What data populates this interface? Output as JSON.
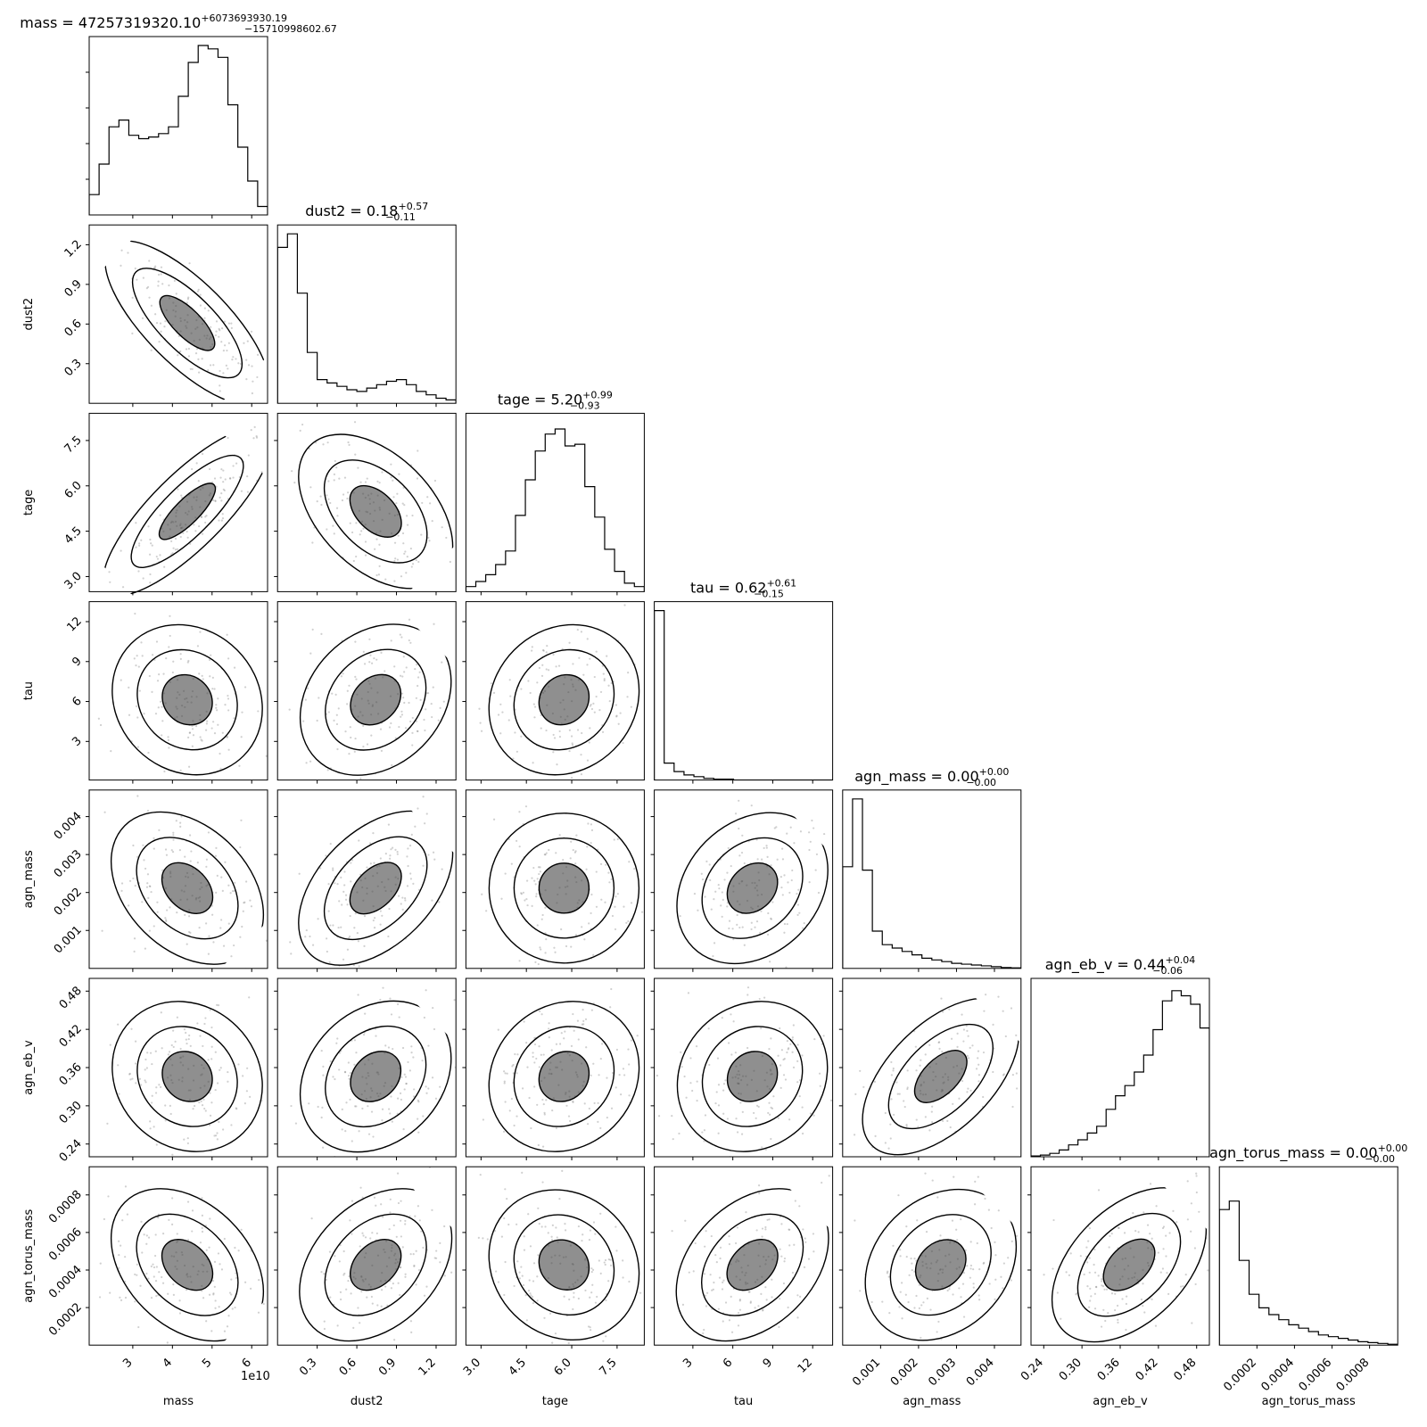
{
  "chart_data": {
    "type": "corner",
    "parameters": [
      {
        "name": "mass",
        "xlabel": "mass",
        "ylabel": "",
        "range": [
          19000000000.0,
          64000000000.0
        ],
        "ticks": [
          30000000000.0,
          40000000000.0,
          50000000000.0,
          60000000000.0
        ],
        "tick_labels": [
          "3",
          "4",
          "5",
          "6"
        ],
        "offset_label": "1e10",
        "title": {
          "main": "mass = 47257319320.10",
          "plus": "+6073693930.19",
          "minus": "−15710998602.67"
        }
      },
      {
        "name": "dust2",
        "xlabel": "dust2",
        "ylabel": "dust2",
        "range": [
          0.0,
          1.35
        ],
        "ticks": [
          0.3,
          0.6,
          0.9,
          1.2
        ],
        "tick_labels": [
          "0.3",
          "0.6",
          "0.9",
          "1.2"
        ],
        "title": {
          "main": "dust2 = 0.18",
          "plus": "+0.57",
          "minus": "−0.11"
        }
      },
      {
        "name": "tage",
        "xlabel": "tage",
        "ylabel": "tage",
        "range": [
          2.5,
          8.4
        ],
        "ticks": [
          3.0,
          4.5,
          6.0,
          7.5
        ],
        "tick_labels": [
          "3.0",
          "4.5",
          "6.0",
          "7.5"
        ],
        "title": {
          "main": "tage = 5.20",
          "plus": "+0.99",
          "minus": "−0.93"
        }
      },
      {
        "name": "tau",
        "xlabel": "tau",
        "ylabel": "tau",
        "range": [
          0.1,
          13.5
        ],
        "ticks": [
          3,
          6,
          9,
          12
        ],
        "tick_labels": [
          "3",
          "6",
          "9",
          "12"
        ],
        "title": {
          "main": "tau = 0.62",
          "plus": "+0.61",
          "minus": "−0.15"
        }
      },
      {
        "name": "agn_mass",
        "xlabel": "agn_mass",
        "ylabel": "agn_mass",
        "range": [
          0.0,
          0.0047
        ],
        "ticks": [
          0.001,
          0.002,
          0.003,
          0.004
        ],
        "tick_labels": [
          "0.001",
          "0.002",
          "0.003",
          "0.004"
        ],
        "title": {
          "main": "agn_mass = 0.00",
          "plus": "+0.00",
          "minus": "−0.00"
        }
      },
      {
        "name": "agn_eb_v",
        "xlabel": "agn_eb_v",
        "ylabel": "agn_eb_v",
        "range": [
          0.22,
          0.5
        ],
        "ticks": [
          0.24,
          0.3,
          0.36,
          0.42,
          0.48
        ],
        "tick_labels": [
          "0.24",
          "0.30",
          "0.36",
          "0.42",
          "0.48"
        ],
        "title": {
          "main": "agn_eb_v = 0.44",
          "plus": "+0.04",
          "minus": "−0.06"
        }
      },
      {
        "name": "agn_torus_mass",
        "xlabel": "agn_torus_mass",
        "ylabel": "agn_torus_mass",
        "range": [
          0.0,
          0.00095
        ],
        "ticks": [
          0.0002,
          0.0004,
          0.0006,
          0.0008
        ],
        "tick_labels": [
          "0.0002",
          "0.0004",
          "0.0006",
          "0.0008"
        ],
        "title": {
          "main": "agn_torus_mass = 0.00",
          "plus": "+0.00",
          "minus": "−0.00"
        }
      }
    ],
    "histograms": [
      [
        0.12,
        0.3,
        0.52,
        0.56,
        0.47,
        0.45,
        0.46,
        0.48,
        0.52,
        0.7,
        0.9,
        1.0,
        0.98,
        0.93,
        0.65,
        0.4,
        0.2,
        0.05
      ],
      [
        0.92,
        1.0,
        0.65,
        0.3,
        0.14,
        0.12,
        0.1,
        0.08,
        0.07,
        0.09,
        0.11,
        0.13,
        0.14,
        0.11,
        0.07,
        0.05,
        0.03,
        0.02
      ],
      [
        0.03,
        0.06,
        0.1,
        0.16,
        0.24,
        0.45,
        0.66,
        0.83,
        0.93,
        0.96,
        0.86,
        0.87,
        0.62,
        0.44,
        0.25,
        0.12,
        0.05,
        0.03
      ],
      [
        1.0,
        0.1,
        0.05,
        0.03,
        0.02,
        0.01,
        0.005,
        0.005,
        0,
        0,
        0,
        0,
        0,
        0,
        0,
        0,
        0,
        0
      ],
      [
        0.6,
        1.0,
        0.58,
        0.22,
        0.14,
        0.12,
        0.1,
        0.08,
        0.06,
        0.05,
        0.04,
        0.03,
        0.025,
        0.02,
        0.015,
        0.01,
        0.005,
        0.003
      ],
      [
        0.005,
        0.01,
        0.02,
        0.04,
        0.07,
        0.1,
        0.14,
        0.18,
        0.28,
        0.36,
        0.42,
        0.5,
        0.6,
        0.75,
        0.92,
        0.98,
        0.95,
        0.9,
        0.76
      ],
      [
        0.8,
        0.85,
        0.5,
        0.3,
        0.22,
        0.18,
        0.15,
        0.12,
        0.1,
        0.08,
        0.06,
        0.05,
        0.04,
        0.03,
        0.02,
        0.015,
        0.01,
        0.005
      ]
    ],
    "correlations": {
      "1-0": -0.75,
      "2-0": 0.85,
      "2-1": -0.4,
      "3-0": -0.1,
      "3-1": 0.2,
      "3-2": 0.1,
      "4-0": -0.3,
      "4-1": 0.4,
      "4-2": 0.0,
      "4-3": 0.2,
      "5-0": -0.1,
      "5-1": 0.2,
      "5-2": 0.1,
      "5-3": 0.1,
      "5-4": 0.5,
      "6-0": -0.3,
      "6-1": 0.3,
      "6-2": -0.1,
      "6-3": 0.3,
      "6-4": 0.2,
      "6-5": 0.4
    },
    "grid": false,
    "legend": "none"
  }
}
